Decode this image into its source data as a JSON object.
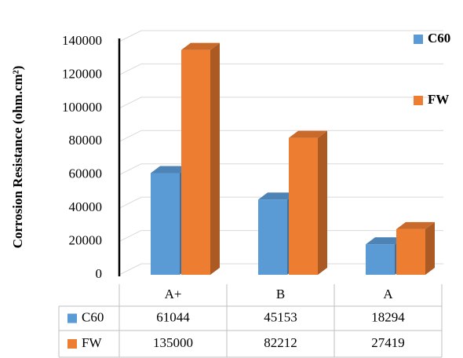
{
  "chart_data": {
    "type": "bar3d",
    "y_label": "Corrosion Resistance (ohm.cm²)",
    "categories": [
      "A+",
      "B",
      "A"
    ],
    "series": [
      {
        "name": "C60",
        "color": "#5b9bd5",
        "values": [
          61044,
          45153,
          18294
        ]
      },
      {
        "name": "FW",
        "color": "#ed7d31",
        "values": [
          135000,
          82212,
          27419
        ]
      }
    ],
    "ylim": [
      0,
      140000
    ],
    "yticks": [
      0,
      20000,
      40000,
      60000,
      80000,
      100000,
      120000,
      140000
    ],
    "grid": true,
    "legend": "right",
    "data_table": true
  }
}
